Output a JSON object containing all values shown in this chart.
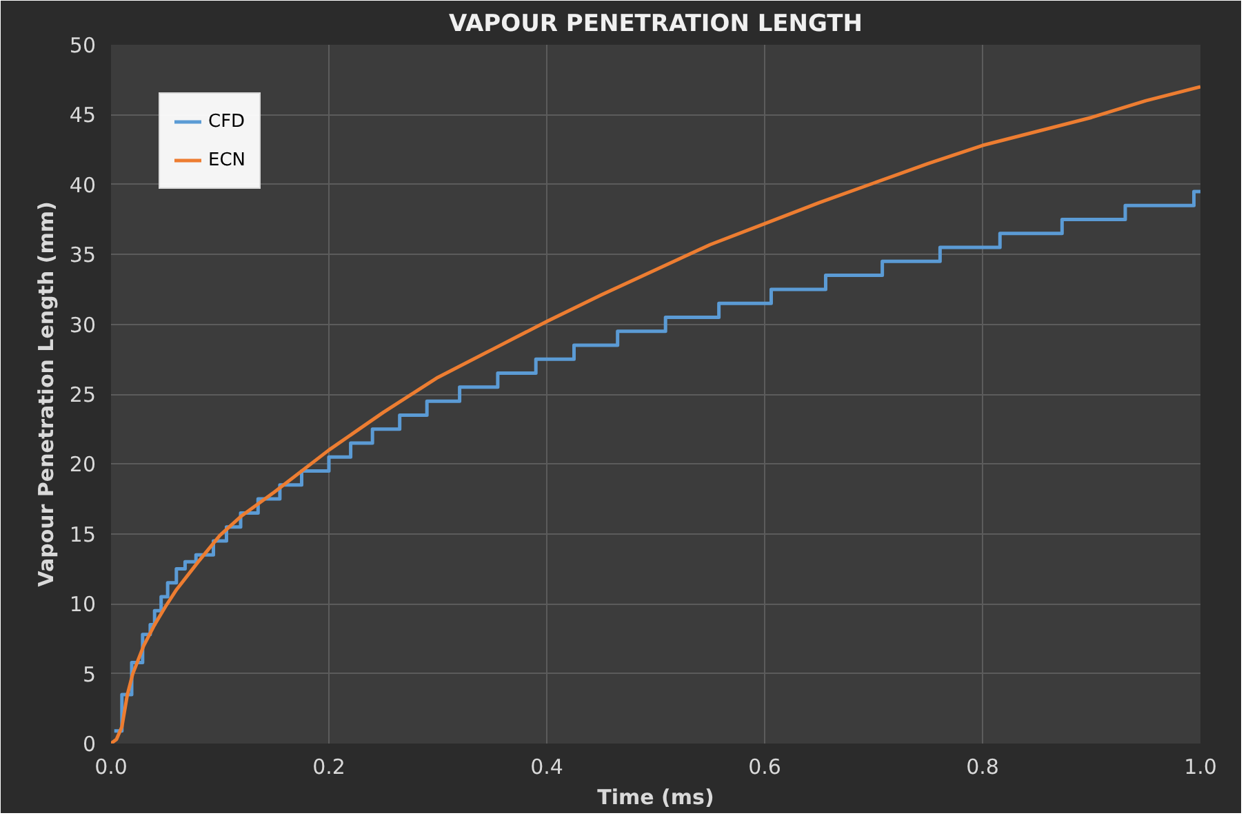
{
  "chart_data": {
    "type": "line",
    "title": "VAPOUR PENETRATION LENGTH",
    "xlabel": "Time (ms)",
    "ylabel": "Vapour Penetration Length (mm)",
    "xlim": [
      0,
      1
    ],
    "ylim": [
      0,
      50
    ],
    "xticks": [
      {
        "value": 0,
        "label": "0.0"
      },
      {
        "value": 0.2,
        "label": "0.2"
      },
      {
        "value": 0.4,
        "label": "0.4"
      },
      {
        "value": 0.6,
        "label": "0.6"
      },
      {
        "value": 0.8,
        "label": "0.8"
      },
      {
        "value": 1,
        "label": "1.0"
      }
    ],
    "yticks": [
      0,
      5,
      10,
      15,
      20,
      25,
      30,
      35,
      40,
      45,
      50
    ],
    "grid": true,
    "legend": "top left",
    "marker": "none",
    "line_style": "solid",
    "series": [
      {
        "name": "CFD",
        "type": "step",
        "color": "#5b9bd5",
        "x": [
          0.003,
          0.01,
          0.019,
          0.029,
          0.036,
          0.04,
          0.046,
          0.052,
          0.06,
          0.068,
          0.078,
          0.094,
          0.106,
          0.119,
          0.135,
          0.155,
          0.175,
          0.2,
          0.22,
          0.24,
          0.265,
          0.29,
          0.32,
          0.355,
          0.39,
          0.425,
          0.465,
          0.509,
          0.558,
          0.606,
          0.656,
          0.708,
          0.761,
          0.816,
          0.873,
          0.931,
          0.994,
          1.0
        ],
        "values": [
          0.9,
          3.5,
          5.8,
          7.8,
          8.5,
          9.5,
          10.5,
          11.5,
          12.5,
          13,
          13.5,
          14.5,
          15.5,
          16.5,
          17.5,
          18.5,
          19.5,
          20.5,
          21.5,
          22.5,
          23.5,
          24.5,
          25.5,
          26.5,
          27.5,
          28.5,
          29.5,
          30.5,
          31.5,
          32.5,
          33.5,
          34.5,
          35.5,
          36.5,
          37.5,
          38.5,
          39.5,
          39.5
        ]
      },
      {
        "name": "ECN",
        "color": "#ed7d31",
        "x": [
          0,
          0.005,
          0.01,
          0.015,
          0.02,
          0.03,
          0.04,
          0.05,
          0.06,
          0.08,
          0.1,
          0.12,
          0.15,
          0.2,
          0.25,
          0.3,
          0.35,
          0.4,
          0.45,
          0.5,
          0.55,
          0.6,
          0.65,
          0.7,
          0.75,
          0.8,
          0.85,
          0.9,
          0.95,
          1.0
        ],
        "values": [
          0,
          0.3,
          1.2,
          3.5,
          5,
          7,
          8.5,
          9.8,
          11,
          13,
          14.9,
          16.3,
          18,
          21,
          23.7,
          26.2,
          28.2,
          30.2,
          32.1,
          33.9,
          35.7,
          37.2,
          38.7,
          40.1,
          41.5,
          42.8,
          43.8,
          44.8,
          46,
          47
        ]
      }
    ]
  }
}
